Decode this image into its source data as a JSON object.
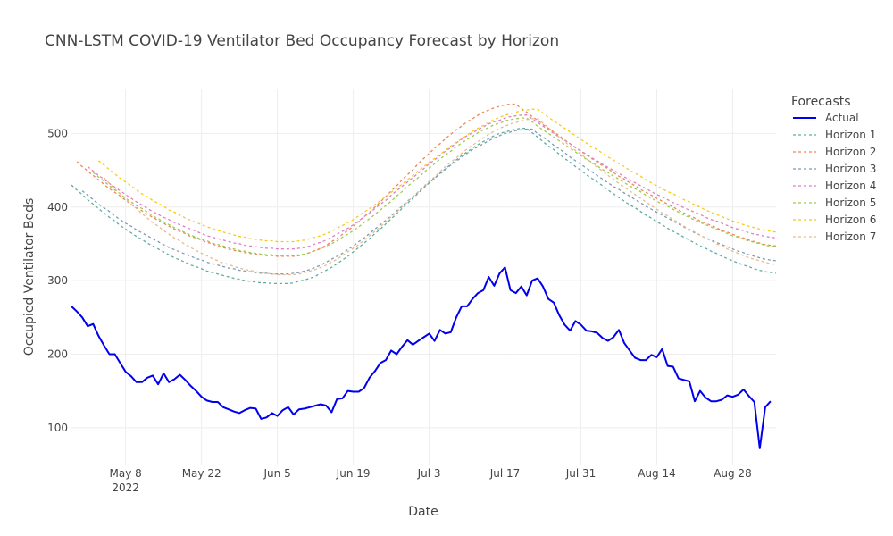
{
  "chart_data": {
    "type": "line",
    "title": "CNN-LSTM COVID-19 Ventilator Bed Occupancy Forecast by Horizon",
    "xlabel": "Date",
    "ylabel": "Occupied Ventilator Beds",
    "x_start": "2022-04-28",
    "x_end": "2022-09-05",
    "xlim": [
      "2022-04-28",
      "2022-09-05"
    ],
    "ylim": [
      50,
      560
    ],
    "x_ticks": [
      {
        "date": "2022-05-08",
        "label": "May 8",
        "sublabel": "2022"
      },
      {
        "date": "2022-05-22",
        "label": "May 22",
        "sublabel": ""
      },
      {
        "date": "2022-06-05",
        "label": "Jun 5",
        "sublabel": ""
      },
      {
        "date": "2022-06-19",
        "label": "Jun 19",
        "sublabel": ""
      },
      {
        "date": "2022-07-03",
        "label": "Jul 3",
        "sublabel": ""
      },
      {
        "date": "2022-07-17",
        "label": "Jul 17",
        "sublabel": ""
      },
      {
        "date": "2022-07-31",
        "label": "Jul 31",
        "sublabel": ""
      },
      {
        "date": "2022-08-14",
        "label": "Aug 14",
        "sublabel": ""
      },
      {
        "date": "2022-08-28",
        "label": "Aug 28",
        "sublabel": ""
      }
    ],
    "y_ticks": [
      100,
      200,
      300,
      400,
      500
    ],
    "legend": {
      "title": "Forecasts",
      "position": "top-right"
    },
    "grid": true,
    "series": [
      {
        "name": "Actual",
        "color": "#0000ee",
        "dash": "solid",
        "values": [
          265,
          258,
          250,
          238,
          241,
          225,
          212,
          200,
          200,
          188,
          176,
          170,
          162,
          162,
          168,
          171,
          159,
          174,
          162,
          166,
          172,
          165,
          157,
          150,
          142,
          137,
          135,
          135,
          128,
          125,
          122,
          120,
          124,
          127,
          126,
          112,
          114,
          120,
          116,
          124,
          128,
          118,
          125,
          126,
          128,
          130,
          132,
          130,
          121,
          139,
          140,
          150,
          149,
          149,
          154,
          168,
          177,
          188,
          192,
          205,
          200,
          210,
          219,
          213,
          218,
          223,
          228,
          218,
          233,
          228,
          230,
          250,
          265,
          265,
          275,
          283,
          287,
          305,
          293,
          310,
          318,
          287,
          283,
          292,
          280,
          300,
          303,
          292,
          275,
          270,
          253,
          240,
          232,
          245,
          240,
          232,
          231,
          229,
          222,
          218,
          223,
          233,
          215,
          205,
          195,
          192,
          192,
          199,
          196,
          207,
          184,
          183,
          167,
          165,
          163,
          136,
          150,
          141,
          136,
          136,
          138,
          144,
          142,
          145,
          152,
          143,
          135,
          72,
          128,
          136
        ]
      },
      {
        "name": "Horizon 1",
        "color": "#5fada0",
        "dash": "3,3",
        "values": [
          null,
          null,
          null,
          null,
          null,
          null,
          null,
          null,
          null,
          null,
          null,
          null,
          null,
          null,
          null,
          null,
          null,
          null,
          null,
          null,
          null,
          null,
          null,
          null,
          null,
          null,
          null,
          null,
          null,
          null,
          null,
          null,
          null,
          null,
          null,
          null,
          null,
          null,
          null,
          null,
          null,
          null,
          null,
          null,
          null,
          null,
          null,
          null,
          null,
          null,
          null,
          null,
          null,
          null,
          null,
          null,
          null,
          null,
          null,
          null,
          null,
          null,
          null,
          null,
          null,
          null,
          null,
          null,
          null,
          null,
          null,
          null,
          null,
          null,
          null,
          null,
          null,
          null,
          null,
          null,
          null,
          null,
          null,
          null,
          null,
          null,
          null,
          null,
          null,
          null,
          null,
          null,
          null,
          null,
          null,
          null,
          null,
          null,
          null,
          null,
          null,
          null,
          null,
          null,
          null,
          null,
          null,
          null,
          null,
          null,
          null,
          null,
          null,
          null,
          null,
          null,
          null,
          null,
          null,
          null,
          null,
          null,
          null,
          null,
          null,
          null,
          null,
          null,
          null,
          null
        ]
      },
      {
        "name": "Horizon 2",
        "color": "#f0855a",
        "dash": "3,3",
        "values": []
      },
      {
        "name": "Horizon 3",
        "color": "#7b9bb8",
        "dash": "3,3",
        "values": []
      },
      {
        "name": "Horizon 4",
        "color": "#de7fc6",
        "dash": "3,3",
        "values": []
      },
      {
        "name": "Horizon 5",
        "color": "#9acd4f",
        "dash": "3,3",
        "values": []
      },
      {
        "name": "Horizon 6",
        "color": "#f5cc1e",
        "dash": "3,3",
        "values": []
      },
      {
        "name": "Horizon 7",
        "color": "#e8bb8a",
        "dash": "3,3",
        "values": []
      }
    ]
  }
}
